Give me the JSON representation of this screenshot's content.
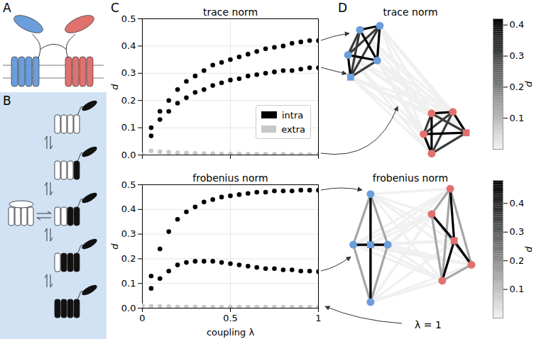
{
  "panel_labels": [
    "A",
    "B",
    "C",
    "D"
  ],
  "chart_data": [
    {
      "type": "scatter",
      "title": "trace norm",
      "ylabel": "d",
      "xlim": [
        0,
        1
      ],
      "xticks": [
        0,
        0.5,
        1
      ],
      "ylim": [
        0,
        0.5
      ],
      "yticks": [
        {
          "value": 0,
          "label": "0.0"
        },
        0.1,
        0.2,
        0.3,
        0.4,
        0.5
      ],
      "grid": true,
      "legend": "lower right",
      "tick_labels": "y",
      "marker": "circle",
      "series": [
        {
          "name": "intra",
          "color": "#000000",
          "x": [
            0.05,
            0.1,
            0.15,
            0.2,
            0.25,
            0.3,
            0.35,
            0.4,
            0.45,
            0.5,
            0.55,
            0.6,
            0.65,
            0.7,
            0.75,
            0.8,
            0.85,
            0.9,
            0.95,
            1,
            0.05,
            0.1,
            0.15,
            0.2,
            0.25,
            0.3,
            0.35,
            0.4,
            0.45,
            0.5,
            0.55,
            0.6,
            0.65,
            0.7,
            0.75,
            0.8,
            0.85,
            0.9,
            0.95,
            1
          ],
          "values": [
            0.1,
            0.16,
            0.2,
            0.24,
            0.27,
            0.29,
            0.31,
            0.33,
            0.34,
            0.35,
            0.36,
            0.37,
            0.38,
            0.39,
            0.395,
            0.4,
            0.41,
            0.415,
            0.42,
            0.42,
            0.07,
            0.13,
            0.16,
            0.19,
            0.21,
            0.23,
            0.24,
            0.255,
            0.265,
            0.275,
            0.28,
            0.29,
            0.295,
            0.3,
            0.305,
            0.31,
            0.31,
            0.315,
            0.32,
            0.32
          ]
        },
        {
          "name": "extra",
          "color": "#c8c8c8",
          "x": [
            0,
            0.05,
            0.1,
            0.15,
            0.2,
            0.25,
            0.3,
            0.35,
            0.4,
            0.45,
            0.5,
            0.55,
            0.6,
            0.65,
            0.7,
            0.75,
            0.8,
            0.85,
            0.9,
            0.95,
            1
          ],
          "values": [
            0.0,
            0.015,
            0.012,
            0.01,
            0.008,
            0.007,
            0.006,
            0.005,
            0.005,
            0.004,
            0.004,
            0.004,
            0.003,
            0.003,
            0.003,
            0.003,
            0.003,
            0.002,
            0.002,
            0.002,
            0.002
          ]
        }
      ]
    },
    {
      "type": "scatter",
      "title": "frobenius norm",
      "xlabel": "coupling λ",
      "ylabel": "d",
      "xlim": [
        0,
        1
      ],
      "xticks": [
        0,
        0.5,
        1
      ],
      "ylim": [
        0,
        0.5
      ],
      "yticks": [
        {
          "value": 0,
          "label": "0.0"
        },
        0.1,
        0.2,
        0.3,
        0.4,
        0.5
      ],
      "grid": true,
      "marker": "circle",
      "series": [
        {
          "name": "intra",
          "color": "#000000",
          "x": [
            0.05,
            0.1,
            0.15,
            0.2,
            0.25,
            0.3,
            0.35,
            0.4,
            0.45,
            0.5,
            0.55,
            0.6,
            0.65,
            0.7,
            0.75,
            0.8,
            0.85,
            0.9,
            0.95,
            1,
            0.05,
            0.1,
            0.15,
            0.2,
            0.25,
            0.3,
            0.35,
            0.4,
            0.45,
            0.5,
            0.55,
            0.6,
            0.65,
            0.7,
            0.75,
            0.8,
            0.85,
            0.9,
            0.95,
            1
          ],
          "values": [
            0.13,
            0.24,
            0.31,
            0.36,
            0.39,
            0.41,
            0.43,
            0.44,
            0.45,
            0.455,
            0.46,
            0.465,
            0.47,
            0.47,
            0.475,
            0.475,
            0.475,
            0.478,
            0.478,
            0.478,
            0.08,
            0.12,
            0.15,
            0.175,
            0.185,
            0.19,
            0.19,
            0.19,
            0.185,
            0.18,
            0.175,
            0.17,
            0.165,
            0.16,
            0.16,
            0.155,
            0.155,
            0.15,
            0.15,
            0.148
          ]
        },
        {
          "name": "extra",
          "color": "#c8c8c8",
          "x": [
            0,
            0.05,
            0.1,
            0.15,
            0.2,
            0.25,
            0.3,
            0.35,
            0.4,
            0.45,
            0.5,
            0.55,
            0.6,
            0.65,
            0.7,
            0.75,
            0.8,
            0.85,
            0.9,
            0.95,
            1
          ],
          "values": [
            0.01,
            0.008,
            0.007,
            0.006,
            0.005,
            0.005,
            0.005,
            0.004,
            0.004,
            0.004,
            0.004,
            0.004,
            0.004,
            0.004,
            0.004,
            0.004,
            0.004,
            0.004,
            0.004,
            0.004,
            0.004
          ]
        }
      ]
    },
    {
      "type": "network",
      "title": "trace norm",
      "colorbar": {
        "label": "d",
        "range": [
          0,
          0.42
        ],
        "ticks": [
          0.1,
          0.2,
          0.3,
          0.4
        ]
      },
      "nodes": [
        {
          "color": "#6b9edb",
          "marker": "circle"
        },
        {
          "color": "#6b9edb",
          "marker": "circle"
        },
        {
          "color": "#6b9edb",
          "marker": "circle"
        },
        {
          "color": "#6b9edb",
          "marker": "circle"
        },
        {
          "color": "#6b9edb",
          "marker": "square"
        },
        {
          "color": "#e0716f",
          "marker": "circle"
        },
        {
          "color": "#e0716f",
          "marker": "circle"
        },
        {
          "color": "#e0716f",
          "marker": "circle"
        },
        {
          "color": "#e0716f",
          "marker": "circle"
        },
        {
          "color": "#e0716f",
          "marker": "square"
        }
      ],
      "edges": [
        {
          "source": 0,
          "target": 5,
          "d": 0.003
        },
        {
          "source": 0,
          "target": 6,
          "d": 0.003
        },
        {
          "source": 0,
          "target": 7,
          "d": 0.003
        },
        {
          "source": 0,
          "target": 8,
          "d": 0.003
        },
        {
          "source": 0,
          "target": 9,
          "d": 0.003
        },
        {
          "source": 1,
          "target": 5,
          "d": 0.003
        },
        {
          "source": 1,
          "target": 6,
          "d": 0.003
        },
        {
          "source": 1,
          "target": 7,
          "d": 0.003
        },
        {
          "source": 1,
          "target": 8,
          "d": 0.003
        },
        {
          "source": 1,
          "target": 9,
          "d": 0.003
        },
        {
          "source": 2,
          "target": 5,
          "d": 0.003
        },
        {
          "source": 2,
          "target": 6,
          "d": 0.003
        },
        {
          "source": 2,
          "target": 7,
          "d": 0.003
        },
        {
          "source": 2,
          "target": 8,
          "d": 0.003
        },
        {
          "source": 2,
          "target": 9,
          "d": 0.003
        },
        {
          "source": 3,
          "target": 5,
          "d": 0.003
        },
        {
          "source": 3,
          "target": 6,
          "d": 0.003
        },
        {
          "source": 3,
          "target": 7,
          "d": 0.003
        },
        {
          "source": 3,
          "target": 8,
          "d": 0.003
        },
        {
          "source": 3,
          "target": 9,
          "d": 0.003
        },
        {
          "source": 4,
          "target": 5,
          "d": 0.003
        },
        {
          "source": 4,
          "target": 6,
          "d": 0.003
        },
        {
          "source": 4,
          "target": 7,
          "d": 0.003
        },
        {
          "source": 4,
          "target": 8,
          "d": 0.003
        },
        {
          "source": 4,
          "target": 9,
          "d": 0.003
        },
        {
          "source": 0,
          "target": 2,
          "d": 0.32
        },
        {
          "source": 0,
          "target": 4,
          "d": 0.32
        },
        {
          "source": 1,
          "target": 2,
          "d": 0.32
        },
        {
          "source": 1,
          "target": 4,
          "d": 0.32
        },
        {
          "source": 3,
          "target": 4,
          "d": 0.32
        },
        {
          "source": 0,
          "target": 1,
          "d": 0.42
        },
        {
          "source": 0,
          "target": 3,
          "d": 0.42
        },
        {
          "source": 1,
          "target": 3,
          "d": 0.42
        },
        {
          "source": 2,
          "target": 3,
          "d": 0.42
        },
        {
          "source": 2,
          "target": 4,
          "d": 0.42
        },
        {
          "source": 5,
          "target": 7,
          "d": 0.32
        },
        {
          "source": 5,
          "target": 9,
          "d": 0.32
        },
        {
          "source": 6,
          "target": 7,
          "d": 0.32
        },
        {
          "source": 6,
          "target": 8,
          "d": 0.32
        },
        {
          "source": 8,
          "target": 9,
          "d": 0.32
        },
        {
          "source": 5,
          "target": 6,
          "d": 0.42
        },
        {
          "source": 5,
          "target": 8,
          "d": 0.42
        },
        {
          "source": 6,
          "target": 9,
          "d": 0.42
        },
        {
          "source": 7,
          "target": 8,
          "d": 0.42
        },
        {
          "source": 7,
          "target": 9,
          "d": 0.42
        }
      ]
    },
    {
      "type": "network",
      "title": "frobenius norm",
      "annotation": "λ = 1",
      "colorbar": {
        "label": "d",
        "range": [
          0,
          0.48
        ],
        "ticks": [
          0.1,
          0.2,
          0.3,
          0.4
        ]
      },
      "nodes": [
        {
          "color": "#6b9edb",
          "marker": "circle"
        },
        {
          "color": "#6b9edb",
          "marker": "circle"
        },
        {
          "color": "#6b9edb",
          "marker": "square"
        },
        {
          "color": "#6b9edb",
          "marker": "circle"
        },
        {
          "color": "#6b9edb",
          "marker": "circle"
        },
        {
          "color": "#e0716f",
          "marker": "circle"
        },
        {
          "color": "#e0716f",
          "marker": "circle"
        },
        {
          "color": "#e0716f",
          "marker": "square"
        },
        {
          "color": "#e0716f",
          "marker": "circle"
        },
        {
          "color": "#e0716f",
          "marker": "circle"
        }
      ],
      "edges": [
        {
          "source": 0,
          "target": 5,
          "d": 0.004
        },
        {
          "source": 0,
          "target": 6,
          "d": 0.004
        },
        {
          "source": 0,
          "target": 7,
          "d": 0.004
        },
        {
          "source": 0,
          "target": 8,
          "d": 0.004
        },
        {
          "source": 0,
          "target": 9,
          "d": 0.004
        },
        {
          "source": 1,
          "target": 5,
          "d": 0.004
        },
        {
          "source": 1,
          "target": 6,
          "d": 0.004
        },
        {
          "source": 1,
          "target": 7,
          "d": 0.004
        },
        {
          "source": 1,
          "target": 8,
          "d": 0.004
        },
        {
          "source": 1,
          "target": 9,
          "d": 0.004
        },
        {
          "source": 2,
          "target": 5,
          "d": 0.004
        },
        {
          "source": 2,
          "target": 6,
          "d": 0.004
        },
        {
          "source": 2,
          "target": 7,
          "d": 0.004
        },
        {
          "source": 2,
          "target": 8,
          "d": 0.004
        },
        {
          "source": 2,
          "target": 9,
          "d": 0.004
        },
        {
          "source": 3,
          "target": 5,
          "d": 0.004
        },
        {
          "source": 3,
          "target": 6,
          "d": 0.004
        },
        {
          "source": 3,
          "target": 7,
          "d": 0.004
        },
        {
          "source": 3,
          "target": 8,
          "d": 0.004
        },
        {
          "source": 3,
          "target": 9,
          "d": 0.004
        },
        {
          "source": 4,
          "target": 5,
          "d": 0.004
        },
        {
          "source": 4,
          "target": 6,
          "d": 0.004
        },
        {
          "source": 4,
          "target": 7,
          "d": 0.004
        },
        {
          "source": 4,
          "target": 8,
          "d": 0.004
        },
        {
          "source": 4,
          "target": 9,
          "d": 0.004
        },
        {
          "source": 0,
          "target": 1,
          "d": 0.15
        },
        {
          "source": 0,
          "target": 3,
          "d": 0.15
        },
        {
          "source": 0,
          "target": 4,
          "d": 0.15
        },
        {
          "source": 1,
          "target": 3,
          "d": 0.15
        },
        {
          "source": 1,
          "target": 4,
          "d": 0.15
        },
        {
          "source": 3,
          "target": 4,
          "d": 0.15
        },
        {
          "source": 5,
          "target": 6,
          "d": 0.15
        },
        {
          "source": 5,
          "target": 8,
          "d": 0.15
        },
        {
          "source": 5,
          "target": 9,
          "d": 0.15
        },
        {
          "source": 6,
          "target": 8,
          "d": 0.15
        },
        {
          "source": 6,
          "target": 9,
          "d": 0.15
        },
        {
          "source": 8,
          "target": 9,
          "d": 0.15
        },
        {
          "source": 0,
          "target": 2,
          "d": 0.48
        },
        {
          "source": 1,
          "target": 2,
          "d": 0.48
        },
        {
          "source": 2,
          "target": 3,
          "d": 0.48
        },
        {
          "source": 2,
          "target": 4,
          "d": 0.48
        },
        {
          "source": 5,
          "target": 7,
          "d": 0.48
        },
        {
          "source": 6,
          "target": 7,
          "d": 0.48
        },
        {
          "source": 7,
          "target": 8,
          "d": 0.48
        },
        {
          "source": 7,
          "target": 9,
          "d": 0.48
        }
      ]
    }
  ]
}
